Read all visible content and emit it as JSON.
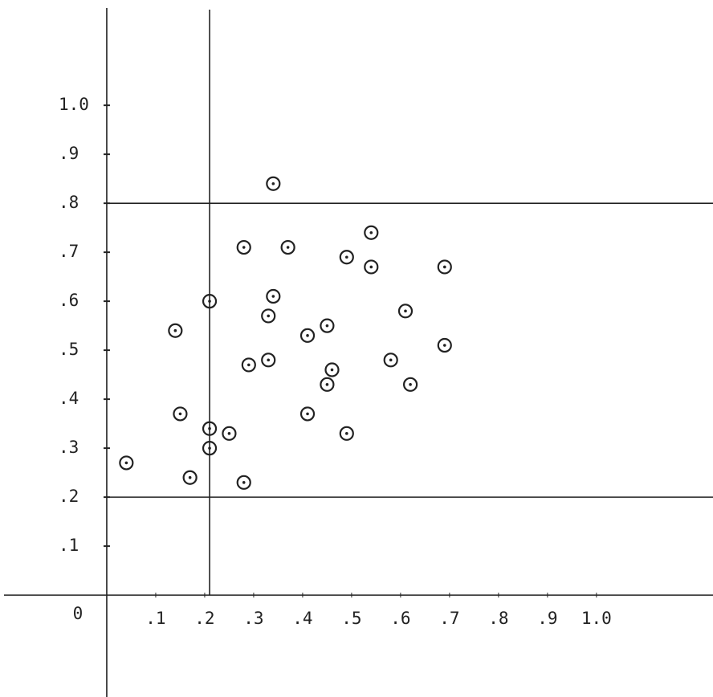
{
  "chart_data": {
    "type": "scatter",
    "origin_label": "0",
    "color": "#222222",
    "xlim": [
      -0.218,
      1.238
    ],
    "ylim": [
      -0.208,
      1.215
    ],
    "xticks": [
      {
        "value": 0.1,
        "label": ".1"
      },
      {
        "value": 0.2,
        "label": ".2"
      },
      {
        "value": 0.3,
        "label": ".3"
      },
      {
        "value": 0.4,
        "label": ".4"
      },
      {
        "value": 0.5,
        "label": ".5"
      },
      {
        "value": 0.6,
        "label": ".6"
      },
      {
        "value": 0.7,
        "label": ".7"
      },
      {
        "value": 0.8,
        "label": ".8"
      },
      {
        "value": 0.9,
        "label": ".9"
      },
      {
        "value": 1.0,
        "label": "1.0"
      }
    ],
    "yticks": [
      {
        "value": 0.1,
        "label": ".1"
      },
      {
        "value": 0.2,
        "label": ".2"
      },
      {
        "value": 0.3,
        "label": ".3"
      },
      {
        "value": 0.4,
        "label": ".4"
      },
      {
        "value": 0.5,
        "label": ".5"
      },
      {
        "value": 0.6,
        "label": ".6"
      },
      {
        "value": 0.7,
        "label": ".7"
      },
      {
        "value": 0.8,
        "label": ".8"
      },
      {
        "value": 0.9,
        "label": ".9"
      },
      {
        "value": 1.0,
        "label": "1.0"
      }
    ],
    "reference_lines": {
      "x": [
        0.21
      ],
      "y": [
        0.8,
        0.2
      ]
    },
    "x": [
      0.34,
      0.54,
      0.28,
      0.37,
      0.49,
      0.54,
      0.69,
      0.21,
      0.34,
      0.33,
      0.61,
      0.14,
      0.45,
      0.41,
      0.69,
      0.33,
      0.58,
      0.29,
      0.46,
      0.45,
      0.62,
      0.15,
      0.41,
      0.21,
      0.25,
      0.49,
      0.21,
      0.04,
      0.17,
      0.28
    ],
    "values": [
      0.84,
      0.74,
      0.71,
      0.71,
      0.69,
      0.67,
      0.67,
      0.6,
      0.61,
      0.57,
      0.58,
      0.54,
      0.55,
      0.53,
      0.51,
      0.48,
      0.48,
      0.47,
      0.46,
      0.43,
      0.43,
      0.37,
      0.37,
      0.34,
      0.33,
      0.33,
      0.3,
      0.27,
      0.24,
      0.23
    ]
  }
}
